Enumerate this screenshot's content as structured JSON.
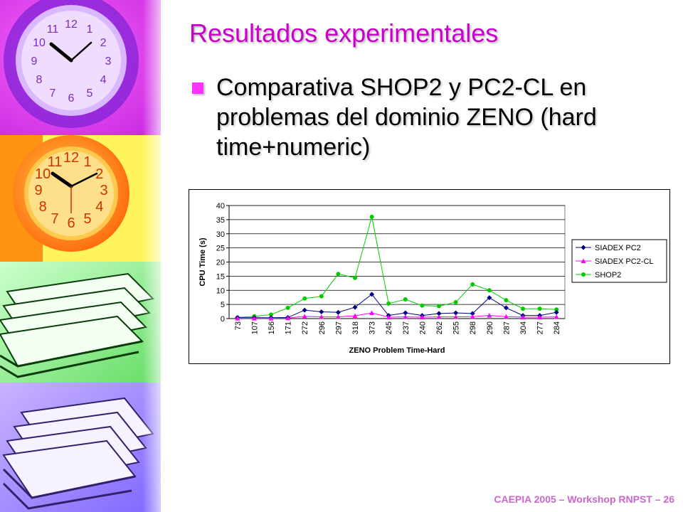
{
  "slide": {
    "title": "Resultados experimentales",
    "bullet": "Comparativa SHOP2 y PC2-CL en problemas del dominio ZENO (hard time+numeric)",
    "footer": "CAEPIA 2005 – Workshop RNPST – 26",
    "accent_color": "#cc00cc",
    "bullet_color": "#ff33ff"
  },
  "side_art": {
    "panels": [
      "clock-magenta",
      "clock-orange",
      "books-green",
      "books-violet"
    ],
    "clock_numbers": [
      "12",
      "1",
      "2",
      "3",
      "4",
      "5",
      "6",
      "7",
      "8",
      "9",
      "10",
      "11"
    ]
  },
  "chart_data": {
    "type": "line",
    "categories": [
      "73",
      "107",
      "156",
      "171",
      "272",
      "296",
      "297",
      "318",
      "373",
      "245",
      "237",
      "240",
      "262",
      "255",
      "298",
      "290",
      "287",
      "304",
      "277",
      "284"
    ],
    "xlabel": "ZENO Problem Time-Hard",
    "ylabel": "CPU Time (s)",
    "ylim": [
      0,
      40
    ],
    "yticks": [
      "0",
      "5",
      "10",
      "15",
      "20",
      "25",
      "30",
      "35",
      "40"
    ],
    "grid": true,
    "legend_position": "right",
    "series": [
      {
        "name": "SIADEX PC2",
        "color": "#000080",
        "marker": "diamond",
        "values": [
          0.3,
          0.3,
          0.3,
          0.4,
          3.0,
          2.4,
          2.2,
          4.0,
          8.6,
          1.1,
          2.0,
          1.1,
          1.8,
          2.0,
          1.8,
          7.4,
          3.8,
          1.1,
          1.1,
          2.2
        ]
      },
      {
        "name": "SIADEX PC2-CL",
        "color": "#ff00ff",
        "marker": "triangle",
        "values": [
          0.1,
          0.1,
          0.1,
          0.2,
          0.8,
          0.6,
          0.6,
          1.0,
          2.0,
          0.5,
          0.6,
          0.5,
          0.6,
          0.6,
          0.7,
          1.1,
          0.7,
          0.5,
          0.5,
          0.6
        ]
      },
      {
        "name": "SHOP2",
        "color": "#00cc00",
        "marker": "circle",
        "values": [
          0.4,
          0.8,
          1.4,
          3.8,
          7.1,
          7.9,
          15.8,
          14.4,
          36.0,
          5.3,
          6.8,
          4.6,
          4.4,
          5.8,
          12.1,
          10.0,
          6.5,
          3.5,
          3.5,
          3.2
        ]
      }
    ]
  }
}
